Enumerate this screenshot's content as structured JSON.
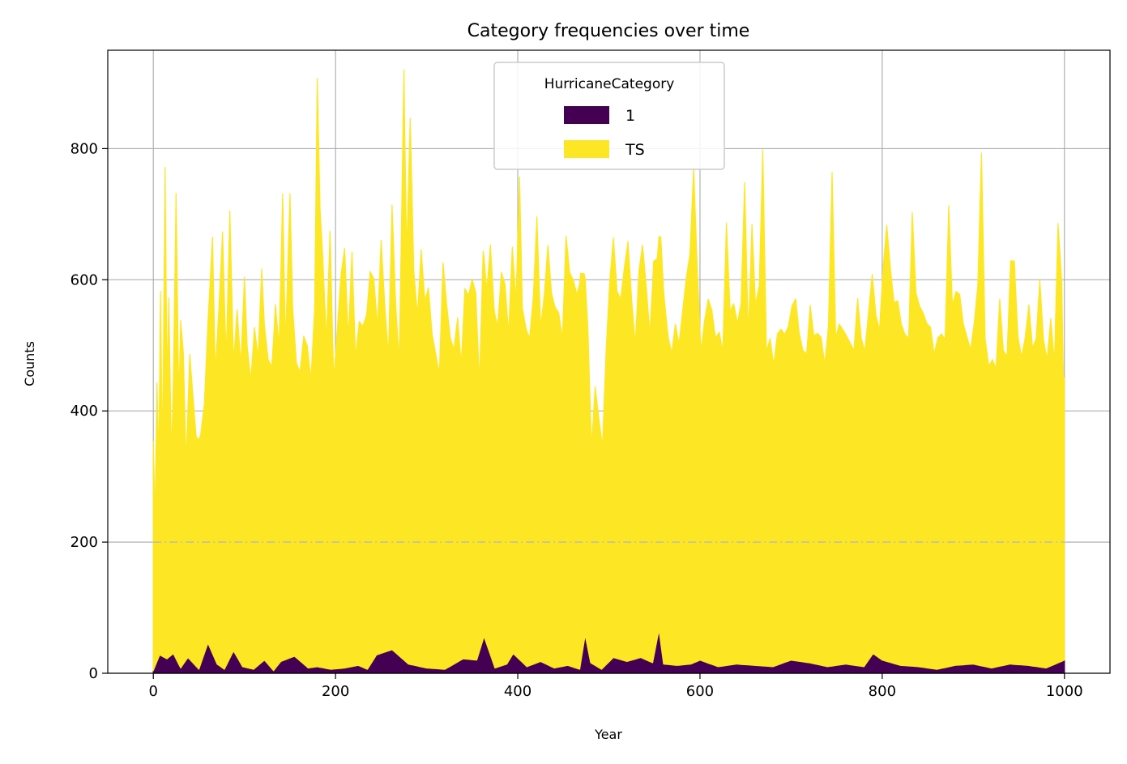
{
  "chart_data": {
    "type": "area",
    "title": "Category frequencies over time",
    "xlabel": "Year",
    "ylabel": "Counts",
    "xlim": [
      -50,
      1050
    ],
    "ylim": [
      0,
      950
    ],
    "xticks": [
      0,
      200,
      400,
      600,
      800,
      1000
    ],
    "yticks": [
      0,
      200,
      400,
      600,
      800
    ],
    "grid": true,
    "stacked": true,
    "legend": {
      "title": "HurricaneCategory",
      "placement": "upper-center",
      "entries": [
        "1",
        "TS"
      ]
    },
    "reference_line": {
      "y": 200,
      "style": "dash-dot"
    },
    "series": [
      {
        "name": "1",
        "color": "#440154",
        "points": [
          [
            0,
            4
          ],
          [
            7,
            28
          ],
          [
            15,
            22
          ],
          [
            22,
            30
          ],
          [
            30,
            8
          ],
          [
            38,
            24
          ],
          [
            50,
            6
          ],
          [
            60,
            46
          ],
          [
            70,
            14
          ],
          [
            78,
            6
          ],
          [
            88,
            34
          ],
          [
            98,
            10
          ],
          [
            110,
            6
          ],
          [
            122,
            20
          ],
          [
            132,
            4
          ],
          [
            140,
            18
          ],
          [
            155,
            26
          ],
          [
            170,
            8
          ],
          [
            180,
            10
          ],
          [
            195,
            6
          ],
          [
            210,
            8
          ],
          [
            225,
            12
          ],
          [
            235,
            6
          ],
          [
            245,
            28
          ],
          [
            262,
            36
          ],
          [
            280,
            14
          ],
          [
            300,
            8
          ],
          [
            320,
            6
          ],
          [
            340,
            22
          ],
          [
            355,
            20
          ],
          [
            363,
            56
          ],
          [
            375,
            8
          ],
          [
            388,
            14
          ],
          [
            395,
            30
          ],
          [
            410,
            10
          ],
          [
            425,
            18
          ],
          [
            440,
            8
          ],
          [
            455,
            12
          ],
          [
            468,
            6
          ],
          [
            474,
            58
          ],
          [
            480,
            16
          ],
          [
            492,
            6
          ],
          [
            505,
            24
          ],
          [
            520,
            18
          ],
          [
            535,
            24
          ],
          [
            548,
            16
          ],
          [
            555,
            66
          ],
          [
            560,
            14
          ],
          [
            575,
            12
          ],
          [
            590,
            14
          ],
          [
            600,
            20
          ],
          [
            620,
            10
          ],
          [
            640,
            14
          ],
          [
            660,
            12
          ],
          [
            680,
            10
          ],
          [
            700,
            20
          ],
          [
            720,
            16
          ],
          [
            740,
            10
          ],
          [
            760,
            14
          ],
          [
            780,
            10
          ],
          [
            790,
            30
          ],
          [
            800,
            20
          ],
          [
            820,
            12
          ],
          [
            840,
            10
          ],
          [
            860,
            6
          ],
          [
            880,
            12
          ],
          [
            900,
            14
          ],
          [
            920,
            8
          ],
          [
            940,
            14
          ],
          [
            960,
            12
          ],
          [
            980,
            8
          ],
          [
            1000,
            20
          ]
        ]
      },
      {
        "name": "TS",
        "color": "#fde725",
        "points": [
          [
            0,
            350
          ],
          [
            2,
            225
          ],
          [
            4,
            425
          ],
          [
            6,
            300
          ],
          [
            8,
            555
          ],
          [
            10,
            300
          ],
          [
            13,
            748
          ],
          [
            15,
            420
          ],
          [
            17,
            548
          ],
          [
            20,
            300
          ],
          [
            22,
            420
          ],
          [
            25,
            710
          ],
          [
            28,
            400
          ],
          [
            30,
            530
          ],
          [
            33,
            475
          ],
          [
            36,
            300
          ],
          [
            40,
            465
          ],
          [
            43,
            415
          ],
          [
            47,
            350
          ],
          [
            52,
            350
          ],
          [
            56,
            380
          ],
          [
            60,
            490
          ],
          [
            65,
            635
          ],
          [
            68,
            440
          ],
          [
            72,
            545
          ],
          [
            76,
            665
          ],
          [
            80,
            470
          ],
          [
            84,
            682
          ],
          [
            88,
            440
          ],
          [
            92,
            530
          ],
          [
            96,
            455
          ],
          [
            100,
            595
          ],
          [
            103,
            490
          ],
          [
            107,
            440
          ],
          [
            111,
            520
          ],
          [
            115,
            470
          ],
          [
            119,
            600
          ],
          [
            122,
            510
          ],
          [
            126,
            465
          ],
          [
            130,
            460
          ],
          [
            134,
            555
          ],
          [
            138,
            485
          ],
          [
            142,
            712
          ],
          [
            145,
            480
          ],
          [
            150,
            708
          ],
          [
            153,
            530
          ],
          [
            157,
            450
          ],
          [
            161,
            440
          ],
          [
            165,
            500
          ],
          [
            169,
            490
          ],
          [
            173,
            440
          ],
          [
            177,
            545
          ],
          [
            180,
            897
          ],
          [
            183,
            700
          ],
          [
            186,
            625
          ],
          [
            190,
            500
          ],
          [
            194,
            668
          ],
          [
            198,
            440
          ],
          [
            202,
            520
          ],
          [
            206,
            600
          ],
          [
            210,
            640
          ],
          [
            214,
            500
          ],
          [
            218,
            632
          ],
          [
            222,
            470
          ],
          [
            226,
            525
          ],
          [
            230,
            520
          ],
          [
            234,
            540
          ],
          [
            238,
            600
          ],
          [
            242,
            580
          ],
          [
            246,
            500
          ],
          [
            250,
            630
          ],
          [
            254,
            530
          ],
          [
            258,
            450
          ],
          [
            262,
            678
          ],
          [
            266,
            530
          ],
          [
            270,
            450
          ],
          [
            275,
            900
          ],
          [
            278,
            620
          ],
          [
            282,
            833
          ],
          [
            286,
            600
          ],
          [
            290,
            535
          ],
          [
            294,
            636
          ],
          [
            298,
            560
          ],
          [
            302,
            580
          ],
          [
            306,
            510
          ],
          [
            310,
            480
          ],
          [
            314,
            450
          ],
          [
            318,
            620
          ],
          [
            322,
            555
          ],
          [
            326,
            500
          ],
          [
            330,
            480
          ],
          [
            334,
            525
          ],
          [
            338,
            450
          ],
          [
            342,
            565
          ],
          [
            346,
            555
          ],
          [
            350,
            580
          ],
          [
            354,
            560
          ],
          [
            358,
            410
          ],
          [
            362,
            592
          ],
          [
            366,
            540
          ],
          [
            370,
            625
          ],
          [
            374,
            545
          ],
          [
            378,
            520
          ],
          [
            382,
            600
          ],
          [
            386,
            580
          ],
          [
            390,
            500
          ],
          [
            394,
            622
          ],
          [
            398,
            540
          ],
          [
            402,
            736
          ],
          [
            405,
            540
          ],
          [
            409,
            515
          ],
          [
            413,
            500
          ],
          [
            417,
            560
          ],
          [
            421,
            680
          ],
          [
            425,
            510
          ],
          [
            429,
            560
          ],
          [
            433,
            640
          ],
          [
            437,
            570
          ],
          [
            441,
            550
          ],
          [
            445,
            540
          ],
          [
            449,
            500
          ],
          [
            453,
            655
          ],
          [
            457,
            600
          ],
          [
            461,
            590
          ],
          [
            465,
            570
          ],
          [
            469,
            595
          ],
          [
            473,
            560
          ],
          [
            477,
            490
          ],
          [
            481,
            330
          ],
          [
            485,
            425
          ],
          [
            489,
            380
          ],
          [
            493,
            340
          ],
          [
            497,
            480
          ],
          [
            501,
            580
          ],
          [
            505,
            640
          ],
          [
            509,
            560
          ],
          [
            513,
            550
          ],
          [
            517,
            600
          ],
          [
            521,
            640
          ],
          [
            525,
            550
          ],
          [
            529,
            480
          ],
          [
            533,
            590
          ],
          [
            537,
            630
          ],
          [
            541,
            570
          ],
          [
            545,
            500
          ],
          [
            549,
            605
          ],
          [
            553,
            580
          ],
          [
            557,
            620
          ],
          [
            561,
            555
          ],
          [
            565,
            500
          ],
          [
            569,
            475
          ],
          [
            573,
            520
          ],
          [
            577,
            490
          ],
          [
            581,
            540
          ],
          [
            585,
            590
          ],
          [
            589,
            625
          ],
          [
            593,
            755
          ],
          [
            597,
            600
          ],
          [
            601,
            470
          ],
          [
            605,
            520
          ],
          [
            609,
            555
          ],
          [
            613,
            540
          ],
          [
            617,
            500
          ],
          [
            621,
            510
          ],
          [
            625,
            480
          ],
          [
            629,
            675
          ],
          [
            633,
            540
          ],
          [
            637,
            550
          ],
          [
            641,
            520
          ],
          [
            645,
            550
          ],
          [
            649,
            735
          ],
          [
            653,
            500
          ],
          [
            657,
            672
          ],
          [
            661,
            550
          ],
          [
            665,
            580
          ],
          [
            669,
            787
          ],
          [
            673,
            480
          ],
          [
            677,
            500
          ],
          [
            681,
            460
          ],
          [
            685,
            505
          ],
          [
            689,
            510
          ],
          [
            693,
            500
          ],
          [
            697,
            510
          ],
          [
            701,
            540
          ],
          [
            705,
            552
          ],
          [
            709,
            500
          ],
          [
            713,
            475
          ],
          [
            717,
            470
          ],
          [
            721,
            545
          ],
          [
            725,
            500
          ],
          [
            729,
            505
          ],
          [
            733,
            500
          ],
          [
            737,
            460
          ],
          [
            741,
            520
          ],
          [
            745,
            753
          ],
          [
            749,
            500
          ],
          [
            753,
            520
          ],
          [
            757,
            510
          ],
          [
            761,
            500
          ],
          [
            765,
            490
          ],
          [
            769,
            480
          ],
          [
            773,
            560
          ],
          [
            777,
            500
          ],
          [
            781,
            480
          ],
          [
            785,
            530
          ],
          [
            789,
            580
          ],
          [
            793,
            520
          ],
          [
            797,
            500
          ],
          [
            801,
            600
          ],
          [
            805,
            665
          ],
          [
            809,
            600
          ],
          [
            813,
            550
          ],
          [
            817,
            555
          ],
          [
            821,
            520
          ],
          [
            825,
            505
          ],
          [
            829,
            500
          ],
          [
            833,
            692
          ],
          [
            837,
            570
          ],
          [
            841,
            550
          ],
          [
            845,
            540
          ],
          [
            849,
            525
          ],
          [
            853,
            520
          ],
          [
            857,
            480
          ],
          [
            861,
            505
          ],
          [
            865,
            510
          ],
          [
            869,
            500
          ],
          [
            873,
            703
          ],
          [
            877,
            550
          ],
          [
            881,
            570
          ],
          [
            885,
            565
          ],
          [
            889,
            520
          ],
          [
            893,
            500
          ],
          [
            897,
            480
          ],
          [
            901,
            520
          ],
          [
            905,
            580
          ],
          [
            909,
            782
          ],
          [
            913,
            500
          ],
          [
            917,
            460
          ],
          [
            921,
            470
          ],
          [
            925,
            455
          ],
          [
            929,
            560
          ],
          [
            933,
            480
          ],
          [
            937,
            470
          ],
          [
            941,
            615
          ],
          [
            945,
            615
          ],
          [
            949,
            500
          ],
          [
            953,
            470
          ],
          [
            957,
            500
          ],
          [
            961,
            550
          ],
          [
            965,
            485
          ],
          [
            969,
            500
          ],
          [
            973,
            590
          ],
          [
            977,
            500
          ],
          [
            981,
            470
          ],
          [
            985,
            530
          ],
          [
            989,
            460
          ],
          [
            993,
            670
          ],
          [
            997,
            580
          ],
          [
            999,
            430
          ]
        ]
      }
    ]
  }
}
